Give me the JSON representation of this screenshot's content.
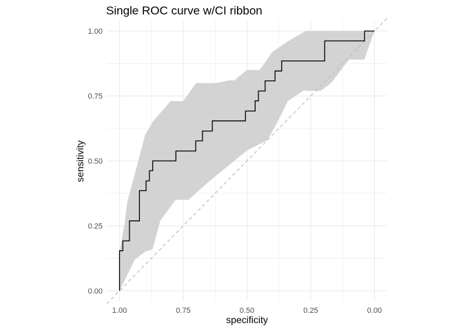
{
  "chart_data": {
    "type": "line",
    "title": "Single ROC curve w/CI ribbon",
    "xlabel": "specificity",
    "ylabel": "sensitivity",
    "x_reversed": true,
    "xlim": [
      1.05,
      -0.05
    ],
    "ylim": [
      -0.04,
      1.04
    ],
    "x_ticks": [
      1.0,
      0.75,
      0.5,
      0.25,
      0.0
    ],
    "x_tick_labels": [
      "1.00",
      "0.75",
      "0.50",
      "0.25",
      "0.00"
    ],
    "y_ticks": [
      0.0,
      0.25,
      0.5,
      0.75,
      1.0
    ],
    "y_tick_labels": [
      "0.00",
      "0.25",
      "0.50",
      "0.75",
      "1.00"
    ],
    "grid": true,
    "colors": {
      "curve": "#000000",
      "ribbon": "#d3d3d3",
      "reference": "#bdbdbd",
      "grid": "#ebebeb"
    },
    "reference_line": {
      "from": [
        1.0,
        0.0
      ],
      "to": [
        0.0,
        1.0
      ],
      "style": "dashed"
    },
    "series": [
      {
        "kind": "roc_curve",
        "points": [
          [
            1.0,
            0.0
          ],
          [
            1.0,
            0.154
          ],
          [
            0.987,
            0.154
          ],
          [
            0.987,
            0.192
          ],
          [
            0.961,
            0.192
          ],
          [
            0.961,
            0.231
          ],
          [
            0.961,
            0.269
          ],
          [
            0.935,
            0.269
          ],
          [
            0.922,
            0.269
          ],
          [
            0.922,
            0.346
          ],
          [
            0.922,
            0.385
          ],
          [
            0.909,
            0.385
          ],
          [
            0.896,
            0.385
          ],
          [
            0.896,
            0.423
          ],
          [
            0.883,
            0.423
          ],
          [
            0.883,
            0.462
          ],
          [
            0.87,
            0.462
          ],
          [
            0.87,
            0.5
          ],
          [
            0.857,
            0.5
          ],
          [
            0.779,
            0.5
          ],
          [
            0.779,
            0.538
          ],
          [
            0.701,
            0.538
          ],
          [
            0.701,
            0.577
          ],
          [
            0.675,
            0.577
          ],
          [
            0.675,
            0.615
          ],
          [
            0.636,
            0.615
          ],
          [
            0.636,
            0.654
          ],
          [
            0.506,
            0.654
          ],
          [
            0.506,
            0.692
          ],
          [
            0.468,
            0.692
          ],
          [
            0.468,
            0.731
          ],
          [
            0.455,
            0.731
          ],
          [
            0.455,
            0.769
          ],
          [
            0.429,
            0.769
          ],
          [
            0.429,
            0.808
          ],
          [
            0.39,
            0.808
          ],
          [
            0.39,
            0.846
          ],
          [
            0.364,
            0.846
          ],
          [
            0.364,
            0.885
          ],
          [
            0.325,
            0.885
          ],
          [
            0.195,
            0.885
          ],
          [
            0.195,
            0.923
          ],
          [
            0.195,
            0.962
          ],
          [
            0.169,
            0.962
          ],
          [
            0.039,
            0.962
          ],
          [
            0.039,
            1.0
          ],
          [
            0.0,
            1.0
          ]
        ]
      },
      {
        "kind": "ci_upper",
        "points": [
          [
            1.0,
            0.15
          ],
          [
            0.98,
            0.26
          ],
          [
            0.97,
            0.34
          ],
          [
            0.94,
            0.45
          ],
          [
            0.91,
            0.56
          ],
          [
            0.9,
            0.6
          ],
          [
            0.87,
            0.65
          ],
          [
            0.8,
            0.73
          ],
          [
            0.75,
            0.73
          ],
          [
            0.7,
            0.8
          ],
          [
            0.62,
            0.8
          ],
          [
            0.57,
            0.81
          ],
          [
            0.55,
            0.81
          ],
          [
            0.5,
            0.85
          ],
          [
            0.45,
            0.85
          ],
          [
            0.4,
            0.92
          ],
          [
            0.34,
            0.96
          ],
          [
            0.27,
            1.0
          ],
          [
            0.0,
            1.0
          ]
        ]
      },
      {
        "kind": "ci_lower",
        "points": [
          [
            0.0,
            1.0
          ],
          [
            0.04,
            0.89
          ],
          [
            0.1,
            0.89
          ],
          [
            0.17,
            0.8
          ],
          [
            0.21,
            0.77
          ],
          [
            0.28,
            0.77
          ],
          [
            0.34,
            0.73
          ],
          [
            0.38,
            0.65
          ],
          [
            0.42,
            0.58
          ],
          [
            0.5,
            0.54
          ],
          [
            0.6,
            0.46
          ],
          [
            0.65,
            0.42
          ],
          [
            0.73,
            0.35
          ],
          [
            0.78,
            0.35
          ],
          [
            0.84,
            0.27
          ],
          [
            0.87,
            0.16
          ],
          [
            0.9,
            0.15
          ],
          [
            0.94,
            0.12
          ],
          [
            0.96,
            0.08
          ],
          [
            1.0,
            0.0
          ]
        ]
      }
    ]
  }
}
